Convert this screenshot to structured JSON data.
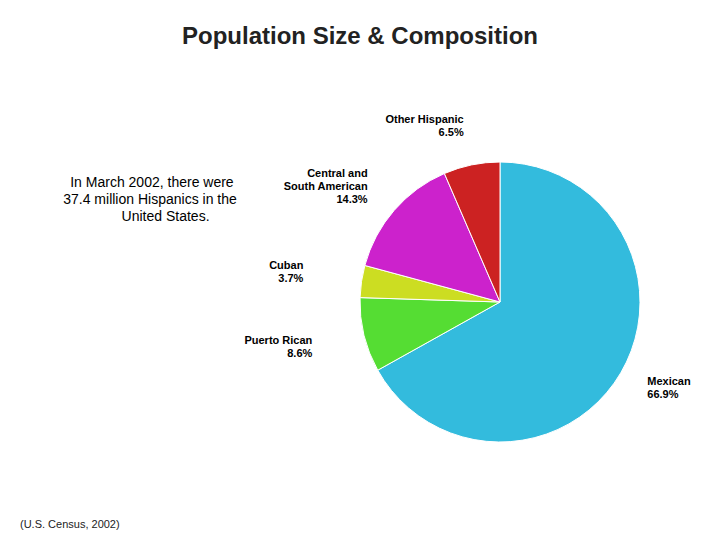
{
  "chart_data": {
    "type": "pie",
    "title": "Population Size & Composition",
    "annotation": " In March 2002, there were\n37.4 million Hispanics in the\n        United States.",
    "source": "(U.S. Census, 2002)",
    "categories": [
      "Mexican",
      "Puerto Rican",
      "Cuban",
      "Central and\nSouth American",
      "Other Hispanic"
    ],
    "values": [
      66.9,
      8.6,
      3.7,
      14.3,
      6.5
    ],
    "value_labels": [
      "66.9%",
      "8.6%",
      "3.7%",
      "14.3%",
      "6.5%"
    ],
    "colors": [
      "#33BBDD",
      "#55DD33",
      "#CCDD22",
      "#CC22CC",
      "#CC2222"
    ],
    "data_labels": true
  }
}
